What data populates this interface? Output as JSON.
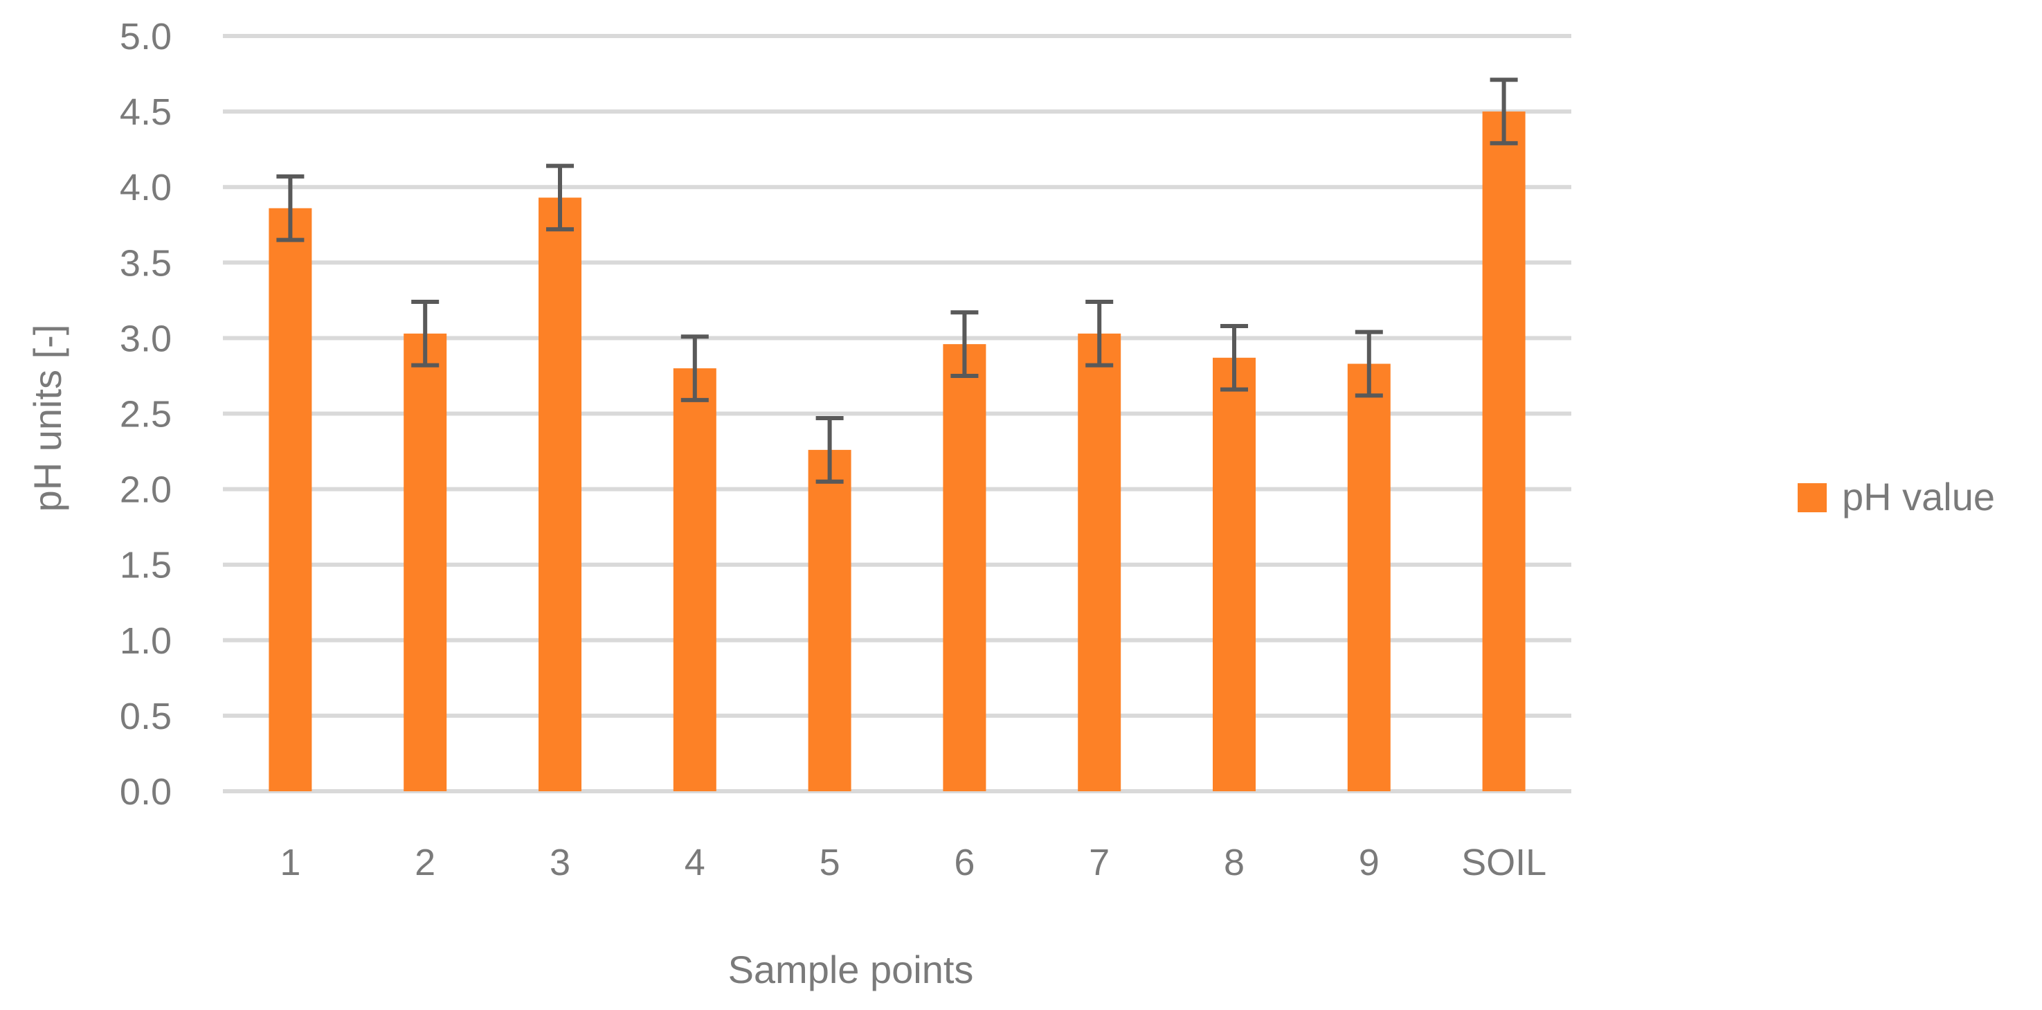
{
  "chart_data": {
    "type": "bar",
    "title": "",
    "xlabel": "Sample points",
    "ylabel": "pH units [-]",
    "ylim": [
      0,
      5
    ],
    "ytick_step": 0.5,
    "yticks": [
      "0.0",
      "0.5",
      "1.0",
      "1.5",
      "2.0",
      "2.5",
      "3.0",
      "3.5",
      "4.0",
      "4.5",
      "5.0"
    ],
    "grid": true,
    "legend_position": "right",
    "categories": [
      "1",
      "2",
      "3",
      "4",
      "5",
      "6",
      "7",
      "8",
      "9",
      "SOIL"
    ],
    "series": [
      {
        "name": "pH value",
        "color": "#fd8126",
        "values": [
          3.86,
          3.03,
          3.93,
          2.8,
          2.26,
          2.96,
          3.03,
          2.87,
          2.83,
          4.5
        ],
        "error": [
          0.21,
          0.21,
          0.21,
          0.21,
          0.21,
          0.21,
          0.21,
          0.21,
          0.21,
          0.21
        ]
      }
    ]
  },
  "colors": {
    "bar": "#fd8126",
    "error_bar": "#595959",
    "grid": "#d9d9d9",
    "text": "#7a7a7a"
  }
}
